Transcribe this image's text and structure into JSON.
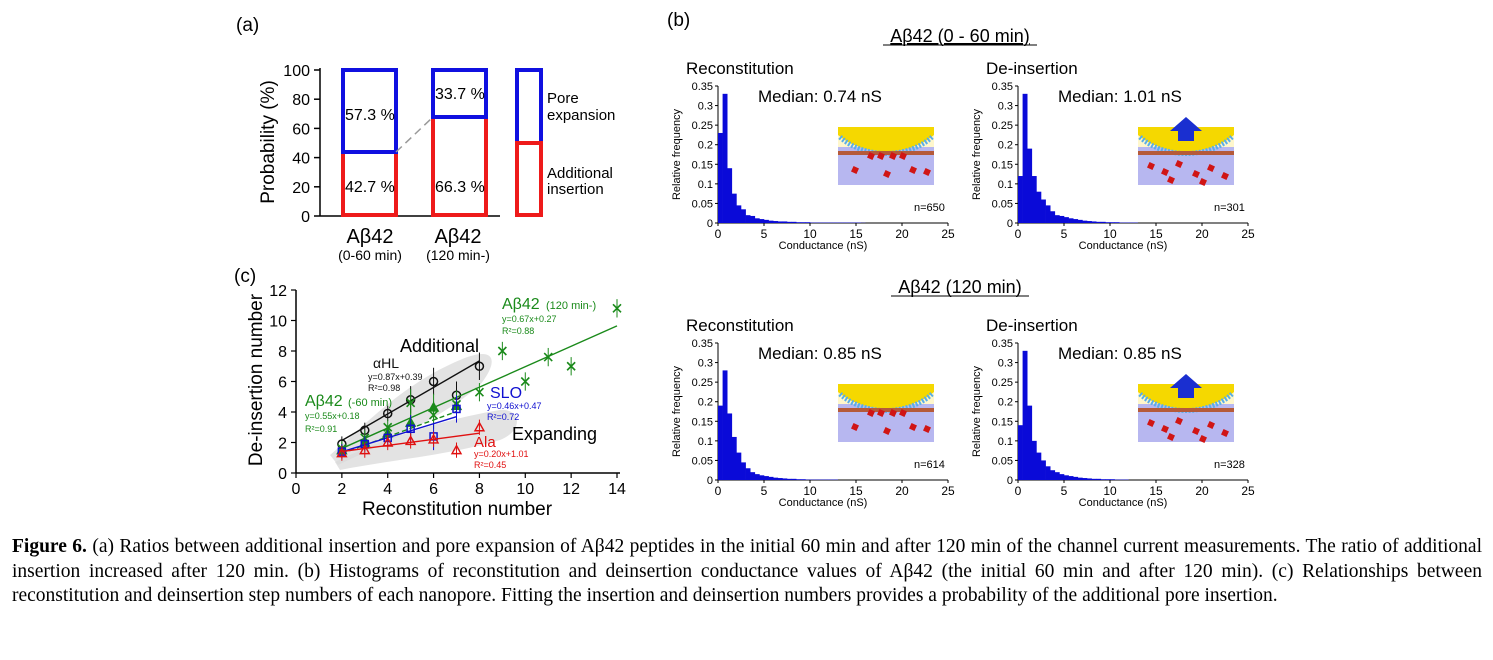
{
  "panel_a": {
    "label": "(a)",
    "ylabel": "Probability (%)",
    "yticks": [
      "100",
      "80",
      "60",
      "40",
      "20",
      "0"
    ],
    "bar1_top_pct": "57.3 %",
    "bar1_bottom_pct": "42.7 %",
    "bar2_top_pct": "33.7 %",
    "bar2_bottom_pct": "66.3 %",
    "cat1_name": "Aβ42",
    "cat1_sub": "(0-60 min)",
    "cat2_name": "Aβ42",
    "cat2_sub": "(120 min-)",
    "legend_pore_1": "Pore",
    "legend_pore_2": "expansion",
    "legend_add_1": "Additional",
    "legend_add_2": "insertion",
    "colors": {
      "pore": "#1010e0",
      "insertion": "#ee1a1a"
    }
  },
  "panel_b": {
    "label": "(b)",
    "title1": "Aβ42 (0 - 60 min)",
    "title2": "Aβ42 (120 min)",
    "ylabel": "Relative frequency",
    "xlabel": "Conductance (nS)",
    "yticks": [
      "0.35",
      "0.3",
      "0.25",
      "0.2",
      "0.15",
      "0.1",
      "0.05",
      "0"
    ],
    "xticks": [
      "0",
      "5",
      "10",
      "15",
      "20",
      "25"
    ],
    "h1_title": "Reconstitution",
    "h1_median": "Median: 0.74 nS",
    "h1_n": "n=650",
    "h2_title": "De-insertion",
    "h2_median": "Median: 1.01 nS",
    "h2_n": "n=301",
    "h3_title": "Reconstitution",
    "h3_median": "Median: 0.85 nS",
    "h3_n": "n=614",
    "h4_title": "De-insertion",
    "h4_median": "Median: 0.85 nS",
    "h4_n": "n=328"
  },
  "panel_c": {
    "label": "(c)",
    "xlabel": "Reconstitution number",
    "ylabel": "De-insertion number",
    "xticks": [
      "0",
      "2",
      "4",
      "6",
      "8",
      "10",
      "12",
      "14"
    ],
    "yticks": [
      "12",
      "10",
      "8",
      "6",
      "4",
      "2",
      "0"
    ],
    "txt_additional": "Additional",
    "txt_expanding": "Expanding",
    "ahl": "αHL",
    "ahl_eq": "y=0.87x+0.39",
    "ahl_r": "R²=0.98",
    "ab120": "Aβ42",
    "ab120_sub": "(120 min-)",
    "ab120_eq": "y=0.67x+0.27",
    "ab120_r": "R²=0.88",
    "ab60": "Aβ42",
    "ab60_sub": "(-60 min)",
    "ab60_eq": "y=0.55x+0.18",
    "ab60_r": "R²=0.91",
    "slo": "SLO",
    "slo_eq": "y=0.46x+0.47",
    "slo_r": "R²=0.72",
    "ala": "Ala",
    "ala_eq": "y=0.20x+1.01",
    "ala_r": "R²=0.45"
  },
  "caption": {
    "fig": "Figure 6.",
    "text": "(a) Ratios between additional insertion and pore expansion of Aβ42 peptides in the initial 60 min and after 120 min of the channel current measurements. The ratio of additional insertion increased after 120 min. (b) Histograms of reconstitution and deinsertion conductance values of Aβ42 (the initial 60 min and after 120 min). (c) Relationships between reconstitution and deinsertion step numbers of each nanopore. Fitting the insertion and deinsertion numbers provides a probability of the additional pore insertion."
  },
  "chart_data": [
    {
      "type": "bar",
      "title": "",
      "categories": [
        "Aβ42 (0-60 min)",
        "Aβ42 (120 min-)"
      ],
      "series": [
        {
          "name": "Additional insertion",
          "values": [
            42.7,
            66.3
          ]
        },
        {
          "name": "Pore expansion",
          "values": [
            57.3,
            33.7
          ]
        }
      ],
      "ylabel": "Probability (%)",
      "ylim": [
        0,
        100
      ]
    },
    {
      "type": "bar",
      "title": "Aβ42 (0 - 60 min) Reconstitution",
      "xlabel": "Conductance (nS)",
      "ylabel": "Relative frequency",
      "xlim": [
        0,
        25
      ],
      "ylim": [
        0,
        0.35
      ],
      "bin_width": 0.5,
      "values": [
        0.23,
        0.33,
        0.14,
        0.075,
        0.045,
        0.035,
        0.02,
        0.018,
        0.012,
        0.01,
        0.008,
        0.006,
        0.005,
        0.004,
        0.004,
        0.003,
        0.003,
        0.002,
        0.002,
        0.002,
        0.001,
        0.001,
        0.001,
        0.001,
        0.001,
        0.001,
        0.001,
        0.001,
        0.001,
        0.001,
        0.001,
        0.0005
      ]
    },
    {
      "type": "bar",
      "title": "Aβ42 (0 - 60 min) De-insertion",
      "xlabel": "Conductance (nS)",
      "ylabel": "Relative frequency",
      "xlim": [
        0,
        25
      ],
      "ylim": [
        0,
        0.35
      ],
      "bin_width": 0.5,
      "values": [
        0.12,
        0.33,
        0.19,
        0.12,
        0.08,
        0.06,
        0.045,
        0.03,
        0.02,
        0.018,
        0.015,
        0.012,
        0.01,
        0.008,
        0.006,
        0.005,
        0.004,
        0.003,
        0.003,
        0.002,
        0.002,
        0.002,
        0.001,
        0.001,
        0.001,
        0.001
      ]
    },
    {
      "type": "bar",
      "title": "Aβ42 (120 min) Reconstitution",
      "xlabel": "Conductance (nS)",
      "ylabel": "Relative frequency",
      "xlim": [
        0,
        25
      ],
      "ylim": [
        0,
        0.35
      ],
      "bin_width": 0.5,
      "values": [
        0.19,
        0.28,
        0.17,
        0.11,
        0.07,
        0.045,
        0.03,
        0.02,
        0.015,
        0.012,
        0.01,
        0.008,
        0.006,
        0.005,
        0.004,
        0.003,
        0.003,
        0.002,
        0.002,
        0.001,
        0.001,
        0.001,
        0.001,
        0.001,
        0.001,
        0.001
      ]
    },
    {
      "type": "bar",
      "title": "Aβ42 (120 min) De-insertion",
      "xlabel": "Conductance (nS)",
      "ylabel": "Relative frequency",
      "xlim": [
        0,
        25
      ],
      "ylim": [
        0,
        0.35
      ],
      "bin_width": 0.5,
      "values": [
        0.14,
        0.33,
        0.19,
        0.1,
        0.07,
        0.05,
        0.035,
        0.025,
        0.02,
        0.015,
        0.012,
        0.01,
        0.008,
        0.006,
        0.005,
        0.004,
        0.003,
        0.003,
        0.002,
        0.002,
        0.002,
        0.001,
        0.001,
        0.001
      ]
    },
    {
      "type": "scatter",
      "title": "",
      "xlabel": "Reconstitution number",
      "ylabel": "De-insertion number",
      "xlim": [
        0,
        14
      ],
      "ylim": [
        0,
        12
      ],
      "series": [
        {
          "name": "αHL",
          "color": "#111111",
          "marker": "o",
          "x": [
            2,
            3,
            4,
            5,
            6,
            7,
            8
          ],
          "y": [
            1.9,
            2.8,
            3.9,
            4.8,
            6.0,
            5.1,
            7.0
          ],
          "fit": [
            0.87,
            0.39
          ]
        },
        {
          "name": "Aβ42 (120 min-)",
          "color": "#1a8a1a",
          "marker": "x",
          "x": [
            2,
            3,
            4,
            5,
            6,
            7,
            8,
            9,
            10,
            11,
            12,
            14
          ],
          "y": [
            1.6,
            2.3,
            3.0,
            4.6,
            3.8,
            4.5,
            5.3,
            8.0,
            6.0,
            7.6,
            7.0,
            10.8
          ],
          "fit": [
            0.67,
            0.27
          ]
        },
        {
          "name": "Aβ42 (-60 min)",
          "color": "#1a8a1a",
          "marker": "^",
          "x": [
            2,
            3,
            4,
            5,
            6,
            7
          ],
          "y": [
            1.5,
            2.0,
            2.6,
            3.3,
            4.3,
            4.4
          ],
          "fit": [
            0.55,
            0.18
          ]
        },
        {
          "name": "SLO",
          "color": "#1010d0",
          "marker": "s",
          "x": [
            2,
            3,
            4,
            5,
            6,
            7
          ],
          "y": [
            1.4,
            1.9,
            2.3,
            2.9,
            2.4,
            4.2
          ],
          "fit": [
            0.46,
            0.47
          ]
        },
        {
          "name": "Ala",
          "color": "#e01010",
          "marker": "^",
          "x": [
            2,
            3,
            4,
            5,
            6,
            7,
            8
          ],
          "y": [
            1.3,
            1.5,
            2.0,
            2.1,
            2.2,
            1.5,
            3.0
          ],
          "fit": [
            0.2,
            1.01
          ]
        }
      ]
    }
  ]
}
